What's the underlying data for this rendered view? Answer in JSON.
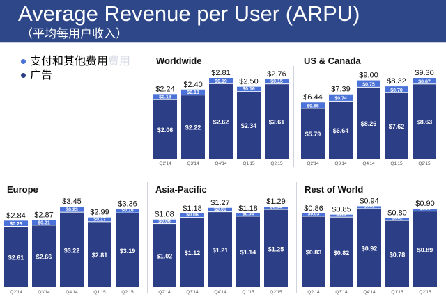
{
  "header": {
    "title": "Average Revenue per User (ARPU)",
    "subtitle": "（平均每用户收入）"
  },
  "legend": {
    "items": [
      {
        "label": "支付和其他费用",
        "color": "#4a72d8"
      },
      {
        "label": "广告",
        "color": "#2b3e86"
      }
    ],
    "ghost_text": "费用"
  },
  "colors": {
    "advertising": "#2b3e86",
    "payments": "#4a72d8",
    "header": "#2d4789"
  },
  "chart_data": [
    {
      "type": "bar",
      "stacked": true,
      "title": "Worldwide",
      "categories": [
        "Q2'14",
        "Q3'14",
        "Q4'14",
        "Q1'15",
        "Q2'15"
      ],
      "series": [
        {
          "name": "广告",
          "values": [
            2.06,
            2.22,
            2.62,
            2.34,
            2.61
          ]
        },
        {
          "name": "支付和其他费用",
          "values": [
            0.18,
            0.18,
            0.19,
            0.16,
            0.15
          ]
        }
      ],
      "totals": [
        "$2.24",
        "$2.40",
        "$2.81",
        "$2.50",
        "$2.76"
      ]
    },
    {
      "type": "bar",
      "stacked": true,
      "title": "US & Canada",
      "categories": [
        "Q2'14",
        "Q3'14",
        "Q4'14",
        "Q1'15",
        "Q2'15"
      ],
      "series": [
        {
          "name": "广告",
          "values": [
            5.79,
            6.64,
            8.26,
            7.62,
            8.63
          ]
        },
        {
          "name": "支付和其他费用",
          "values": [
            0.66,
            0.74,
            0.75,
            0.7,
            0.67
          ]
        }
      ],
      "totals": [
        "$6.44",
        "$7.39",
        "$9.00",
        "$8.32",
        "$9.30"
      ]
    },
    {
      "type": "bar",
      "stacked": true,
      "title": "Europe",
      "categories": [
        "Q2'14",
        "Q3'14",
        "Q4'14",
        "Q1'15",
        "Q2'15"
      ],
      "series": [
        {
          "name": "广告",
          "values": [
            2.61,
            2.66,
            3.22,
            2.81,
            3.19
          ]
        },
        {
          "name": "支付和其他费用",
          "values": [
            0.23,
            0.21,
            0.23,
            0.17,
            0.16
          ]
        }
      ],
      "totals": [
        "$2.84",
        "$2.87",
        "$3.45",
        "$2.99",
        "$3.36"
      ]
    },
    {
      "type": "bar",
      "stacked": true,
      "title": "Asia-Pacific",
      "categories": [
        "Q2'14",
        "Q3'14",
        "Q4'14",
        "Q1'15",
        "Q2'15"
      ],
      "series": [
        {
          "name": "广告",
          "values": [
            1.02,
            1.12,
            1.21,
            1.14,
            1.25
          ]
        },
        {
          "name": "支付和其他费用",
          "values": [
            0.06,
            0.06,
            0.06,
            0.04,
            0.04
          ]
        }
      ],
      "totals": [
        "$1.08",
        "$1.18",
        "$1.27",
        "$1.18",
        "$1.29"
      ]
    },
    {
      "type": "bar",
      "stacked": true,
      "title": "Rest of World",
      "categories": [
        "Q2'14",
        "Q3'14",
        "Q4'14",
        "Q1'15",
        "Q2'15"
      ],
      "series": [
        {
          "name": "广告",
          "values": [
            0.83,
            0.82,
            0.92,
            0.78,
            0.89
          ]
        },
        {
          "name": "支付和其他费用",
          "values": [
            0.03,
            0.02,
            0.02,
            0.02,
            0.01
          ]
        }
      ],
      "totals": [
        "$0.86",
        "$0.85",
        "$0.94",
        "$0.80",
        "$0.90"
      ]
    }
  ]
}
